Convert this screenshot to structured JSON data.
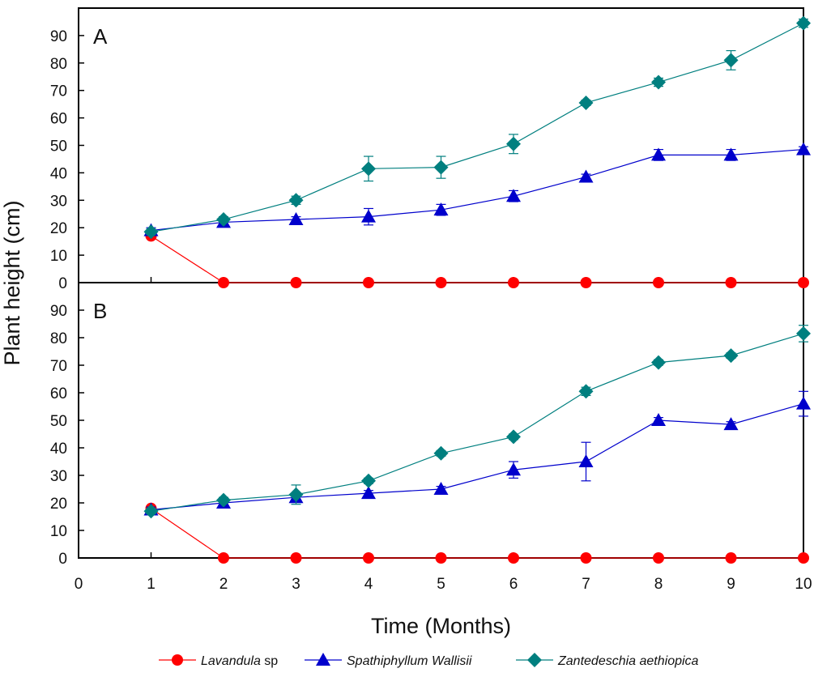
{
  "chart_data": {
    "type": "line",
    "ylabel": "Plant height (cm)",
    "xlabel": "Time (Months)",
    "xlim": [
      0,
      10
    ],
    "ylim": [
      0,
      100
    ],
    "x_ticks": [
      0,
      1,
      2,
      3,
      4,
      5,
      6,
      7,
      8,
      9,
      10
    ],
    "y_ticks": [
      0,
      10,
      20,
      30,
      40,
      50,
      60,
      70,
      80,
      90
    ],
    "legend": {
      "position": "bottom",
      "entries": [
        {
          "italic": "Lavandula",
          "normal": " sp",
          "color": "#ff0000",
          "marker": "circle"
        },
        {
          "italic": "Spathiphyllum Wallisii",
          "normal": "",
          "color": "#0000cc",
          "marker": "triangle"
        },
        {
          "italic": "Zantedeschia aethiopica",
          "normal": "",
          "color": "#007f7f",
          "marker": "diamond"
        }
      ]
    },
    "panels": [
      {
        "label": "A",
        "series": [
          {
            "name": "Lavandula sp",
            "color": "#ff0000",
            "marker": "circle",
            "x": [
              1,
              2,
              3,
              4,
              5,
              6,
              7,
              8,
              9,
              10
            ],
            "y": [
              17,
              0,
              0,
              0,
              0,
              0,
              0,
              0,
              0,
              0
            ],
            "err": [
              0,
              0,
              0,
              0,
              0,
              0,
              0,
              0,
              0,
              0
            ]
          },
          {
            "name": "Spathiphyllum Wallisii",
            "color": "#0000cc",
            "marker": "triangle",
            "x": [
              1,
              2,
              3,
              4,
              5,
              6,
              7,
              8,
              9,
              10
            ],
            "y": [
              19,
              22,
              23,
              24,
              26.5,
              31.5,
              38.5,
              46.5,
              46.5,
              48.5
            ],
            "err": [
              1,
              1,
              1,
              3,
              2,
              2,
              1,
              2,
              2,
              1
            ]
          },
          {
            "name": "Zantedeschia aethiopica",
            "color": "#007f7f",
            "marker": "diamond",
            "x": [
              1,
              2,
              3,
              4,
              5,
              6,
              7,
              8,
              9,
              10
            ],
            "y": [
              18.5,
              23,
              30,
              41.5,
              42,
              50.5,
              65.5,
              73,
              81,
              94.5
            ],
            "err": [
              1,
              1,
              1.5,
              4.5,
              4,
              3.5,
              1,
              1.5,
              3.5,
              1.5
            ]
          }
        ]
      },
      {
        "label": "B",
        "series": [
          {
            "name": "Lavandula sp",
            "color": "#ff0000",
            "marker": "circle",
            "x": [
              1,
              2,
              3,
              4,
              5,
              6,
              7,
              8,
              9,
              10
            ],
            "y": [
              18,
              0,
              0,
              0,
              0,
              0,
              0,
              0,
              0,
              0
            ],
            "err": [
              0,
              0,
              0,
              0,
              0,
              0,
              0,
              0,
              0,
              0
            ]
          },
          {
            "name": "Spathiphyllum Wallisii",
            "color": "#0000cc",
            "marker": "triangle",
            "x": [
              1,
              2,
              3,
              4,
              5,
              6,
              7,
              8,
              9,
              10
            ],
            "y": [
              17.5,
              20,
              22,
              23.5,
              25,
              32,
              35,
              50,
              48.5,
              56
            ],
            "err": [
              1,
              1,
              1,
              1,
              1,
              3,
              7,
              1,
              1,
              4.5
            ]
          },
          {
            "name": "Zantedeschia aethiopica",
            "color": "#007f7f",
            "marker": "diamond",
            "x": [
              1,
              2,
              3,
              4,
              5,
              6,
              7,
              8,
              9,
              10
            ],
            "y": [
              17,
              21,
              23,
              28,
              38,
              44,
              60.5,
              71,
              73.5,
              81.5
            ],
            "err": [
              1,
              1,
              3.5,
              1,
              1,
              1,
              1.5,
              1,
              1,
              3
            ]
          }
        ]
      }
    ]
  }
}
